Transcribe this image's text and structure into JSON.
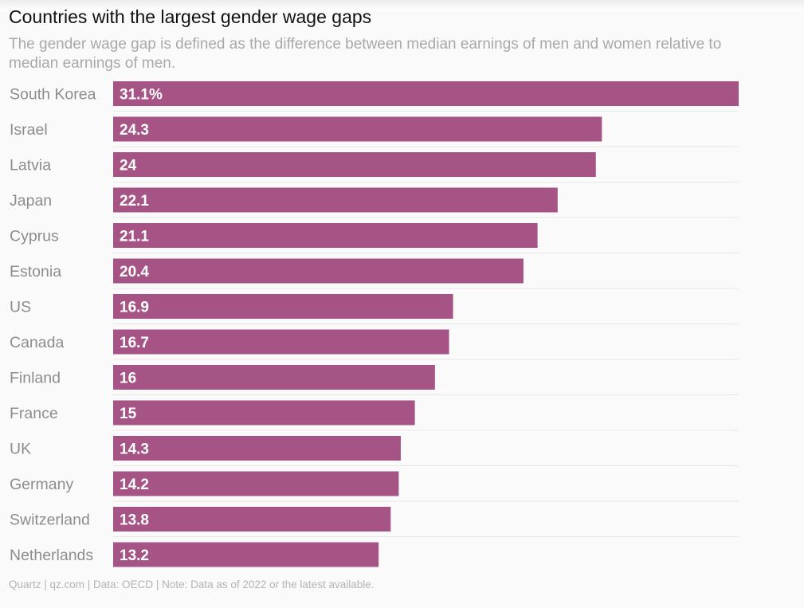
{
  "chart_data": {
    "type": "bar",
    "orientation": "horizontal",
    "title": "Countries with the largest gender wage gaps",
    "subtitle": "The gender wage gap is defined as the difference between median earnings of men and women relative to median earnings of men.",
    "categories": [
      "South Korea",
      "Israel",
      "Latvia",
      "Japan",
      "Cyprus",
      "Estonia",
      "US",
      "Canada",
      "Finland",
      "France",
      "UK",
      "Germany",
      "Switzerland",
      "Netherlands"
    ],
    "values": [
      31.1,
      24.3,
      24,
      22.1,
      21.1,
      20.4,
      16.9,
      16.7,
      16,
      15,
      14.3,
      14.2,
      13.8,
      13.2
    ],
    "value_labels": [
      "31.1%",
      "24.3",
      "24",
      "22.1",
      "21.1",
      "20.4",
      "16.9",
      "16.7",
      "16",
      "15",
      "14.3",
      "14.2",
      "13.8",
      "13.2"
    ],
    "unit": "%",
    "xlim": [
      0,
      31.1
    ],
    "xlabel": "",
    "ylabel": "",
    "grid": false,
    "legend": null,
    "bar_color": "#a65485",
    "label_color": "#ffffff",
    "category_color": "#8d8d8d"
  },
  "footer": {
    "source": "Quartz | qz.com | Data: OECD | Note: Data as of 2022 or the latest available."
  }
}
